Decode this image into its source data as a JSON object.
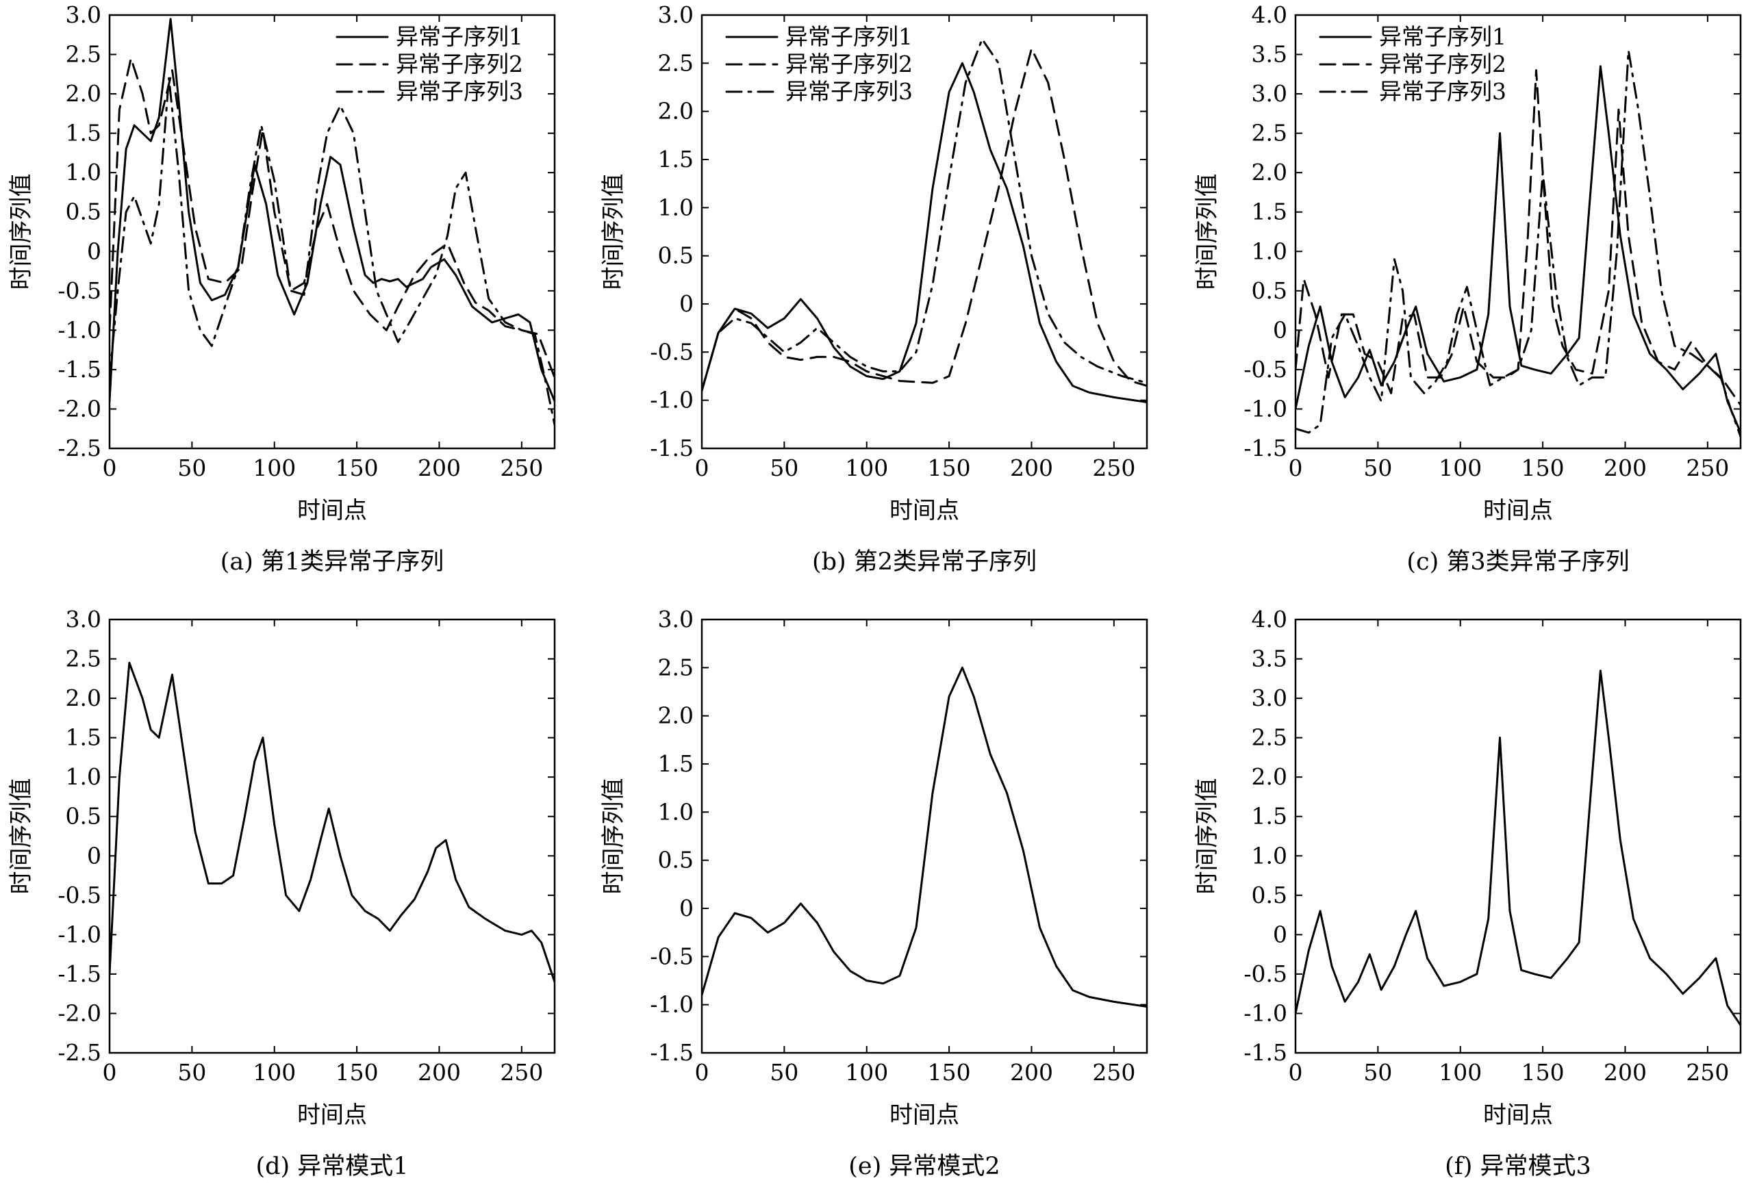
{
  "chart_data": [
    {
      "type": "line",
      "caption": "(a)  第1类异常子序列",
      "xlabel": "时间点",
      "ylabel": "时间序列值",
      "xlim": [
        0,
        270
      ],
      "ylim": [
        -2.5,
        3.0
      ],
      "xticks": [
        0,
        50,
        100,
        150,
        200,
        250
      ],
      "yticks": [
        -2.5,
        -2.0,
        -1.5,
        -1.0,
        -0.5,
        0,
        0.5,
        1.0,
        1.5,
        2.0,
        2.5,
        3.0
      ],
      "legend": "top-right",
      "series": [
        {
          "name": "异常子序列1",
          "style": "solid",
          "x": [
            0,
            5,
            10,
            15,
            20,
            25,
            30,
            37,
            42,
            48,
            55,
            62,
            70,
            78,
            88,
            95,
            102,
            112,
            120,
            128,
            134,
            140,
            148,
            155,
            160,
            165,
            170,
            175,
            180,
            185,
            190,
            195,
            203,
            210,
            220,
            232,
            240,
            248,
            255,
            262,
            270
          ],
          "y": [
            -1.9,
            0.0,
            1.3,
            1.6,
            1.5,
            1.4,
            1.7,
            2.95,
            1.9,
            0.5,
            -0.4,
            -0.62,
            -0.55,
            -0.2,
            1.1,
            0.6,
            -0.3,
            -0.8,
            -0.4,
            0.6,
            1.2,
            1.1,
            0.3,
            -0.3,
            -0.4,
            -0.35,
            -0.38,
            -0.35,
            -0.45,
            -0.4,
            -0.35,
            -0.2,
            -0.1,
            -0.3,
            -0.7,
            -0.9,
            -0.85,
            -0.8,
            -0.9,
            -1.5,
            -1.9
          ]
        },
        {
          "name": "异常子序列2",
          "style": "dashed",
          "x": [
            0,
            6,
            13,
            20,
            25,
            30,
            38,
            45,
            52,
            60,
            70,
            80,
            87,
            93,
            100,
            110,
            118,
            126,
            132,
            140,
            148,
            158,
            168,
            175,
            185,
            195,
            205,
            215,
            222,
            230,
            240,
            250,
            260,
            270
          ],
          "y": [
            -1.0,
            1.8,
            2.45,
            2.0,
            1.5,
            1.6,
            2.3,
            1.3,
            0.3,
            -0.35,
            -0.4,
            -0.2,
            0.8,
            1.55,
            0.5,
            -0.5,
            -0.4,
            0.3,
            0.6,
            0.0,
            -0.5,
            -0.8,
            -1.0,
            -0.7,
            -0.3,
            -0.05,
            0.1,
            -0.4,
            -0.65,
            -0.75,
            -0.95,
            -1.0,
            -1.05,
            -1.6
          ]
        },
        {
          "name": "异常子序列3",
          "style": "dashdot",
          "x": [
            0,
            5,
            10,
            15,
            20,
            25,
            30,
            36,
            42,
            48,
            55,
            62,
            70,
            78,
            85,
            92,
            100,
            110,
            118,
            126,
            132,
            140,
            148,
            155,
            162,
            170,
            175,
            182,
            190,
            198,
            205,
            210,
            216,
            222,
            230,
            240,
            250,
            258,
            264,
            270
          ],
          "y": [
            -1.6,
            -0.5,
            0.5,
            0.7,
            0.4,
            0.1,
            0.6,
            2.2,
            1.0,
            -0.5,
            -1.0,
            -1.2,
            -0.7,
            -0.2,
            0.8,
            1.6,
            0.9,
            -0.5,
            -0.55,
            0.8,
            1.5,
            1.85,
            1.5,
            0.5,
            -0.5,
            -0.9,
            -1.15,
            -0.9,
            -0.6,
            -0.3,
            0.2,
            0.8,
            1.0,
            0.3,
            -0.6,
            -0.9,
            -1.0,
            -1.05,
            -1.6,
            -2.2
          ]
        }
      ]
    },
    {
      "type": "line",
      "caption": "(b)  第2类异常子序列",
      "xlabel": "时间点",
      "ylabel": "时间序列值",
      "xlim": [
        0,
        270
      ],
      "ylim": [
        -1.5,
        3.0
      ],
      "xticks": [
        0,
        50,
        100,
        150,
        200,
        250
      ],
      "yticks": [
        -1.5,
        -1.0,
        -0.5,
        0,
        0.5,
        1.0,
        1.5,
        2.0,
        2.5,
        3.0
      ],
      "legend": "top-left",
      "series": [
        {
          "name": "异常子序列1",
          "style": "solid",
          "x": [
            0,
            10,
            20,
            30,
            40,
            50,
            60,
            70,
            80,
            90,
            100,
            110,
            120,
            130,
            140,
            150,
            158,
            165,
            175,
            185,
            195,
            205,
            215,
            225,
            235,
            250,
            270
          ],
          "y": [
            -0.9,
            -0.3,
            -0.05,
            -0.1,
            -0.25,
            -0.15,
            0.05,
            -0.15,
            -0.45,
            -0.65,
            -0.75,
            -0.78,
            -0.7,
            -0.2,
            1.2,
            2.2,
            2.5,
            2.2,
            1.6,
            1.2,
            0.6,
            -0.2,
            -0.6,
            -0.85,
            -0.92,
            -0.97,
            -1.02
          ]
        },
        {
          "name": "异常子序列2",
          "style": "dashed",
          "x": [
            0,
            10,
            20,
            30,
            40,
            50,
            60,
            70,
            80,
            90,
            100,
            120,
            140,
            150,
            160,
            170,
            180,
            190,
            200,
            210,
            220,
            230,
            240,
            250,
            260,
            270
          ],
          "y": [
            -0.9,
            -0.3,
            -0.05,
            -0.15,
            -0.4,
            -0.55,
            -0.58,
            -0.55,
            -0.55,
            -0.6,
            -0.7,
            -0.8,
            -0.82,
            -0.75,
            -0.2,
            0.5,
            1.2,
            2.0,
            2.65,
            2.3,
            1.5,
            0.6,
            -0.2,
            -0.6,
            -0.8,
            -0.85
          ]
        },
        {
          "name": "异常子序列3",
          "style": "dashdot",
          "x": [
            0,
            10,
            20,
            30,
            40,
            50,
            60,
            70,
            80,
            90,
            100,
            110,
            120,
            130,
            140,
            150,
            160,
            170,
            180,
            190,
            200,
            210,
            220,
            230,
            240,
            255,
            270
          ],
          "y": [
            -0.9,
            -0.3,
            -0.15,
            -0.2,
            -0.35,
            -0.5,
            -0.4,
            -0.25,
            -0.4,
            -0.55,
            -0.65,
            -0.7,
            -0.7,
            -0.5,
            0.2,
            1.3,
            2.3,
            2.75,
            2.5,
            1.5,
            0.5,
            -0.1,
            -0.4,
            -0.55,
            -0.65,
            -0.75,
            -0.82
          ]
        }
      ]
    },
    {
      "type": "line",
      "caption": "(c)  第3类异常子序列",
      "xlabel": "时间点",
      "ylabel": "时间序列值",
      "xlim": [
        0,
        270
      ],
      "ylim": [
        -1.5,
        4.0
      ],
      "xticks": [
        0,
        50,
        100,
        150,
        200,
        250
      ],
      "yticks": [
        -1.5,
        -1.0,
        -0.5,
        0,
        0.5,
        1.0,
        1.5,
        2.0,
        2.5,
        3.0,
        3.5,
        4.0
      ],
      "legend": "top-left",
      "series": [
        {
          "name": "异常子序列1",
          "style": "solid",
          "x": [
            0,
            8,
            15,
            22,
            30,
            38,
            45,
            52,
            60,
            67,
            73,
            80,
            90,
            100,
            110,
            117,
            124,
            130,
            137,
            145,
            155,
            165,
            172,
            178,
            185,
            190,
            197,
            205,
            215,
            225,
            235,
            245,
            255,
            262,
            270
          ],
          "y": [
            -1.0,
            -0.2,
            0.3,
            -0.4,
            -0.85,
            -0.6,
            -0.25,
            -0.7,
            -0.4,
            0.0,
            0.3,
            -0.3,
            -0.65,
            -0.6,
            -0.5,
            0.2,
            2.5,
            0.3,
            -0.45,
            -0.5,
            -0.55,
            -0.3,
            -0.1,
            1.5,
            3.35,
            2.5,
            1.2,
            0.2,
            -0.3,
            -0.5,
            -0.75,
            -0.55,
            -0.3,
            -0.9,
            -1.3
          ]
        },
        {
          "name": "异常子序列2",
          "style": "dashed",
          "x": [
            0,
            5,
            12,
            20,
            28,
            35,
            42,
            50,
            58,
            65,
            72,
            80,
            88,
            95,
            102,
            110,
            120,
            128,
            135,
            141,
            146,
            150,
            156,
            162,
            170,
            180,
            190,
            196,
            202,
            210,
            220,
            230,
            240,
            250,
            260,
            270
          ],
          "y": [
            -0.5,
            0.65,
            0.2,
            -0.6,
            0.2,
            0.2,
            -0.3,
            -0.4,
            -0.8,
            0.15,
            0.2,
            -0.6,
            -0.6,
            -0.3,
            0.3,
            -0.4,
            -0.6,
            -0.6,
            -0.5,
            1.2,
            3.3,
            2.0,
            0.3,
            -0.2,
            -0.5,
            -0.55,
            0.5,
            2.8,
            1.2,
            0.1,
            -0.4,
            -0.5,
            -0.15,
            -0.45,
            -0.65,
            -0.95
          ]
        },
        {
          "name": "异常子序列3",
          "style": "dashdot",
          "x": [
            0,
            8,
            15,
            22,
            30,
            38,
            45,
            52,
            60,
            65,
            70,
            78,
            85,
            92,
            98,
            104,
            110,
            118,
            126,
            135,
            143,
            150,
            158,
            165,
            172,
            180,
            188,
            195,
            202,
            208,
            215,
            222,
            230,
            240,
            250,
            258,
            264,
            270
          ],
          "y": [
            -1.25,
            -1.3,
            -1.2,
            -0.1,
            0.2,
            -0.2,
            -0.6,
            -0.9,
            0.9,
            0.5,
            -0.6,
            -0.8,
            -0.65,
            -0.4,
            0.2,
            0.55,
            0.0,
            -0.7,
            -0.6,
            -0.5,
            0.0,
            2.0,
            0.5,
            -0.35,
            -0.7,
            -0.6,
            -0.6,
            1.0,
            3.55,
            2.8,
            1.7,
            0.5,
            -0.2,
            -0.3,
            -0.45,
            -0.6,
            -1.0,
            -1.35
          ]
        }
      ]
    },
    {
      "type": "line",
      "caption": "(d)  异常模式1",
      "xlabel": "时间点",
      "ylabel": "时间序列值",
      "xlim": [
        0,
        270
      ],
      "ylim": [
        -2.5,
        3.0
      ],
      "xticks": [
        0,
        50,
        100,
        150,
        200,
        250
      ],
      "yticks": [
        -2.5,
        -2.0,
        -1.5,
        -1.0,
        -0.5,
        0,
        0.5,
        1.0,
        1.5,
        2.0,
        2.5,
        3.0
      ],
      "series": [
        {
          "style": "solid",
          "x": [
            0,
            6,
            12,
            20,
            25,
            30,
            38,
            45,
            52,
            60,
            68,
            75,
            82,
            88,
            93,
            100,
            107,
            115,
            122,
            128,
            133,
            140,
            147,
            155,
            163,
            170,
            177,
            185,
            193,
            198,
            204,
            210,
            218,
            228,
            240,
            250,
            256,
            262,
            270
          ],
          "y": [
            -1.5,
            1.0,
            2.45,
            2.0,
            1.6,
            1.5,
            2.3,
            1.3,
            0.3,
            -0.35,
            -0.35,
            -0.25,
            0.5,
            1.2,
            1.5,
            0.4,
            -0.5,
            -0.7,
            -0.3,
            0.2,
            0.6,
            0.0,
            -0.5,
            -0.7,
            -0.8,
            -0.95,
            -0.75,
            -0.55,
            -0.2,
            0.1,
            0.2,
            -0.3,
            -0.65,
            -0.8,
            -0.95,
            -1.0,
            -0.95,
            -1.1,
            -1.6
          ]
        }
      ]
    },
    {
      "type": "line",
      "caption": "(e)  异常模式2",
      "xlabel": "时间点",
      "ylabel": "时间序列值",
      "xlim": [
        0,
        270
      ],
      "ylim": [
        -1.5,
        3.0
      ],
      "xticks": [
        0,
        50,
        100,
        150,
        200,
        250
      ],
      "yticks": [
        -1.5,
        -1.0,
        -0.5,
        0,
        0.5,
        1.0,
        1.5,
        2.0,
        2.5,
        3.0
      ],
      "series": [
        {
          "style": "solid",
          "x": [
            0,
            10,
            20,
            30,
            40,
            50,
            60,
            70,
            80,
            90,
            100,
            110,
            120,
            130,
            140,
            150,
            158,
            165,
            175,
            185,
            195,
            205,
            215,
            225,
            235,
            250,
            270
          ],
          "y": [
            -0.9,
            -0.3,
            -0.05,
            -0.1,
            -0.25,
            -0.15,
            0.05,
            -0.15,
            -0.45,
            -0.65,
            -0.75,
            -0.78,
            -0.7,
            -0.2,
            1.2,
            2.2,
            2.5,
            2.2,
            1.6,
            1.2,
            0.6,
            -0.2,
            -0.6,
            -0.85,
            -0.92,
            -0.97,
            -1.02
          ]
        }
      ]
    },
    {
      "type": "line",
      "caption": "(f)  异常模式3",
      "xlabel": "时间点",
      "ylabel": "时间序列值",
      "xlim": [
        0,
        270
      ],
      "ylim": [
        -1.5,
        4.0
      ],
      "xticks": [
        0,
        50,
        100,
        150,
        200,
        250
      ],
      "yticks": [
        -1.5,
        -1.0,
        -0.5,
        0,
        0.5,
        1.0,
        1.5,
        2.0,
        2.5,
        3.0,
        3.5,
        4.0
      ],
      "series": [
        {
          "style": "solid",
          "x": [
            0,
            8,
            15,
            22,
            30,
            38,
            45,
            52,
            60,
            67,
            73,
            80,
            90,
            100,
            110,
            117,
            124,
            130,
            137,
            145,
            155,
            165,
            172,
            178,
            185,
            190,
            197,
            205,
            215,
            225,
            235,
            245,
            255,
            262,
            270
          ],
          "y": [
            -1.0,
            -0.2,
            0.3,
            -0.4,
            -0.85,
            -0.6,
            -0.25,
            -0.7,
            -0.4,
            0.0,
            0.3,
            -0.3,
            -0.65,
            -0.6,
            -0.5,
            0.2,
            2.5,
            0.3,
            -0.45,
            -0.5,
            -0.55,
            -0.3,
            -0.1,
            1.5,
            3.35,
            2.5,
            1.2,
            0.2,
            -0.3,
            -0.5,
            -0.75,
            -0.55,
            -0.3,
            -0.9,
            -1.15
          ]
        }
      ]
    }
  ]
}
